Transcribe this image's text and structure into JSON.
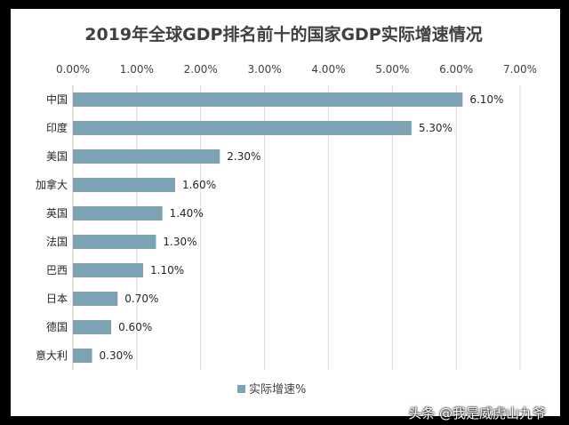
{
  "chart_data": {
    "type": "bar",
    "orientation": "horizontal",
    "title": "2019年全球GDP排名前十的国家GDP实际增速情况",
    "categories": [
      "中国",
      "印度",
      "美国",
      "加拿大",
      "英国",
      "法国",
      "巴西",
      "日本",
      "德国",
      "意大利"
    ],
    "series": [
      {
        "name": "实际增速%",
        "values": [
          6.1,
          5.3,
          2.3,
          1.6,
          1.4,
          1.3,
          1.1,
          0.7,
          0.6,
          0.3
        ],
        "value_labels": [
          "6.10%",
          "5.30%",
          "2.30%",
          "1.60%",
          "1.40%",
          "1.30%",
          "1.10%",
          "0.70%",
          "0.60%",
          "0.30%"
        ]
      }
    ],
    "xlim": [
      0,
      7
    ],
    "xticks": [
      "0.00%",
      "1.00%",
      "2.00%",
      "3.00%",
      "4.00%",
      "5.00%",
      "6.00%",
      "7.00%"
    ],
    "xaxis_position": "top",
    "grid": true,
    "legend": "bottom",
    "bar_color": "#7DA2B3"
  },
  "watermark": "头条 @我是威虎山九爷"
}
